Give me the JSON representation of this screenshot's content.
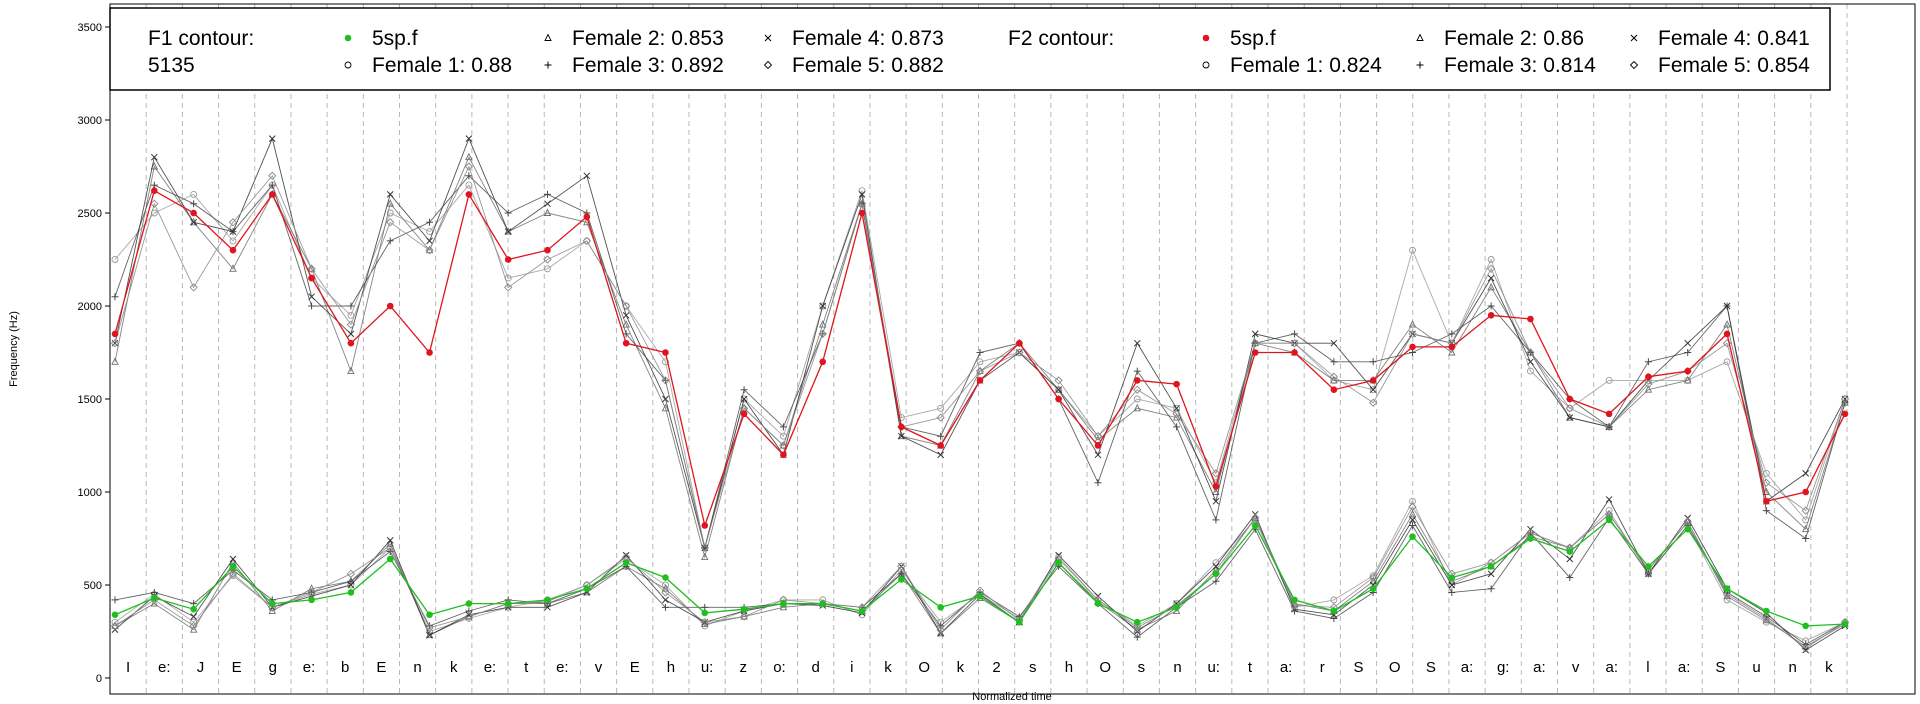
{
  "chart_data": {
    "type": "line",
    "xlabel": "Normalized time",
    "ylabel": "Frequency (Hz)",
    "ylim": [
      0,
      3600
    ],
    "yticks": [
      0,
      500,
      1000,
      1500,
      2000,
      2500,
      3000,
      3500
    ],
    "grid": "vertical dashed segment boundaries",
    "segments": [
      "I",
      "e:",
      "J",
      "E",
      "g",
      "e:",
      "b",
      "E",
      "n",
      "k",
      "e:",
      "t",
      "e:",
      "v",
      "E",
      "h",
      "u:",
      "z",
      "o:",
      "d",
      "i",
      "k",
      "O",
      "k",
      "2",
      "s",
      "h",
      "O",
      "s",
      "n",
      "u:",
      "t",
      "a:",
      "r",
      "S",
      "O",
      "S",
      "a:",
      "g:",
      "a:",
      "v",
      "a:",
      "l",
      "a:",
      "S",
      "u",
      "n",
      "k"
    ],
    "legend": {
      "placement": "top",
      "f1_title": "F1 contour:",
      "f1_subtitle": "5135",
      "f2_title": "F2 contour:",
      "f1_entries": [
        {
          "marker": "filled-circle",
          "label": "5sp.f",
          "color": "#1fbf1f"
        },
        {
          "marker": "circle",
          "label": "Female 1: 0.88"
        },
        {
          "marker": "triangle",
          "label": "Female 2: 0.853"
        },
        {
          "marker": "plus",
          "label": "Female 3: 0.892"
        },
        {
          "marker": "cross",
          "label": "Female 4: 0.873"
        },
        {
          "marker": "diamond",
          "label": "Female 5: 0.882"
        }
      ],
      "f2_entries": [
        {
          "marker": "filled-circle",
          "label": "5sp.f",
          "color": "#e0141e"
        },
        {
          "marker": "circle",
          "label": "Female 1: 0.824"
        },
        {
          "marker": "triangle",
          "label": "Female 2: 0.86"
        },
        {
          "marker": "plus",
          "label": "Female 3: 0.814"
        },
        {
          "marker": "cross",
          "label": "Female 4: 0.841"
        },
        {
          "marker": "diamond",
          "label": "Female 5: 0.854"
        }
      ]
    },
    "series": [
      {
        "name": "5sp.f",
        "formant": "F2",
        "color": "#e0141e",
        "values": [
          1850,
          2620,
          2500,
          2300,
          2600,
          2150,
          1800,
          2000,
          1750,
          2600,
          2250,
          2300,
          2480,
          1800,
          1750,
          820,
          1420,
          1200,
          1700,
          2500,
          1350,
          1250,
          1600,
          1800,
          1500,
          1250,
          1600,
          1580,
          1030,
          1750,
          1750,
          1550,
          1600,
          1780,
          1780,
          1950,
          1930,
          1500,
          1420,
          1620,
          1650,
          1850,
          950,
          1000,
          1420
        ]
      },
      {
        "name": "5sp.f",
        "formant": "F1",
        "color": "#1fbf1f",
        "values": [
          340,
          430,
          370,
          600,
          400,
          420,
          460,
          640,
          340,
          400,
          400,
          420,
          480,
          620,
          540,
          350,
          370,
          400,
          400,
          360,
          530,
          380,
          440,
          300,
          620,
          400,
          300,
          380,
          560,
          820,
          420,
          360,
          480,
          760,
          540,
          600,
          750,
          680,
          850,
          600,
          800,
          480,
          360,
          280,
          290
        ]
      },
      {
        "name": "Female 1",
        "formant": "F2",
        "color": "#9a9a9a",
        "values": [
          2250,
          2500,
          2600,
          2350,
          2650,
          2150,
          1950,
          2500,
          2400,
          2650,
          2150,
          2200,
          2350,
          2000,
          1700,
          700,
          1500,
          1300,
          2000,
          2620,
          1400,
          1450,
          1700,
          1750,
          1550,
          1300,
          1500,
          1450,
          1050,
          1800,
          1800,
          1600,
          1550,
          2300,
          1800,
          2250,
          1650,
          1450,
          1600,
          1600,
          1600,
          1700,
          1100,
          850,
          1500
        ]
      },
      {
        "name": "Female 1",
        "formant": "F1",
        "color": "#9a9a9a",
        "values": [
          300,
          450,
          300,
          550,
          380,
          450,
          500,
          700,
          250,
          320,
          380,
          420,
          500,
          640,
          500,
          280,
          360,
          420,
          420,
          340,
          580,
          300,
          450,
          320,
          650,
          420,
          280,
          400,
          620,
          850,
          380,
          420,
          550,
          950,
          500,
          620,
          780,
          700,
          900,
          560,
          820,
          420,
          300,
          200,
          300
        ]
      },
      {
        "name": "Female 2",
        "formant": "F2",
        "color": "#6f6f6f",
        "values": [
          1700,
          2750,
          2450,
          2200,
          2600,
          2200,
          1650,
          2550,
          2300,
          2800,
          2400,
          2500,
          2450,
          1900,
          1450,
          650,
          1450,
          1250,
          1900,
          2550,
          1300,
          1250,
          1650,
          1800,
          1550,
          1280,
          1450,
          1400,
          1000,
          1800,
          1750,
          1600,
          1600,
          1900,
          1750,
          2100,
          1750,
          1400,
          1350,
          1550,
          1600,
          1900,
          1000,
          800,
          1480
        ]
      },
      {
        "name": "Female 2",
        "formant": "F1",
        "color": "#6f6f6f",
        "values": [
          280,
          400,
          260,
          620,
          360,
          480,
          520,
          720,
          230,
          330,
          400,
          400,
          460,
          600,
          480,
          290,
          330,
          380,
          400,
          360,
          560,
          240,
          430,
          300,
          620,
          410,
          260,
          360,
          580,
          860,
          400,
          360,
          520,
          880,
          520,
          600,
          760,
          700,
          880,
          580,
          840,
          440,
          310,
          170,
          290
        ]
      },
      {
        "name": "Female 3",
        "formant": "F2",
        "color": "#4a4a4a",
        "values": [
          2050,
          2650,
          2550,
          2400,
          2650,
          2000,
          2000,
          2350,
          2450,
          2700,
          2500,
          2600,
          2500,
          1850,
          1600,
          700,
          1550,
          1350,
          1850,
          2550,
          1350,
          1300,
          1750,
          1800,
          1500,
          1050,
          1650,
          1350,
          850,
          1800,
          1850,
          1700,
          1700,
          1750,
          1850,
          2000,
          1750,
          1500,
          1350,
          1700,
          1750,
          2000,
          900,
          750,
          1480
        ]
      },
      {
        "name": "Female 3",
        "formant": "F1",
        "color": "#4a4a4a",
        "values": [
          420,
          460,
          400,
          580,
          420,
          460,
          520,
          680,
          280,
          360,
          420,
          400,
          480,
          600,
          380,
          380,
          380,
          400,
          400,
          380,
          560,
          280,
          460,
          330,
          600,
          400,
          220,
          380,
          520,
          800,
          360,
          320,
          460,
          820,
          460,
          480,
          780,
          540,
          860,
          560,
          820,
          460,
          330,
          180,
          300
        ]
      },
      {
        "name": "Female 4",
        "formant": "F2",
        "color": "#333333",
        "values": [
          1800,
          2800,
          2450,
          2400,
          2900,
          2050,
          1850,
          2600,
          2350,
          2900,
          2400,
          2550,
          2700,
          1950,
          1500,
          700,
          1500,
          1200,
          2000,
          2600,
          1300,
          1200,
          1600,
          1750,
          1550,
          1200,
          1800,
          1450,
          950,
          1850,
          1800,
          1800,
          1550,
          1850,
          1800,
          2150,
          1700,
          1400,
          1350,
          1600,
          1800,
          2000,
          950,
          1100,
          1500
        ]
      },
      {
        "name": "Female 4",
        "formant": "F1",
        "color": "#333333",
        "values": [
          260,
          440,
          330,
          640,
          380,
          440,
          500,
          740,
          230,
          340,
          380,
          380,
          460,
          660,
          420,
          300,
          360,
          400,
          390,
          350,
          600,
          240,
          450,
          300,
          660,
          440,
          250,
          400,
          600,
          880,
          370,
          340,
          500,
          850,
          500,
          560,
          800,
          640,
          960,
          560,
          860,
          480,
          350,
          150,
          280
        ]
      },
      {
        "name": "Female 5",
        "formant": "F2",
        "color": "#888888",
        "values": [
          1800,
          2550,
          2100,
          2450,
          2700,
          2200,
          1900,
          2450,
          2300,
          2750,
          2100,
          2250,
          2350,
          2000,
          1600,
          700,
          1450,
          1250,
          1850,
          2550,
          1350,
          1400,
          1650,
          1750,
          1600,
          1300,
          1550,
          1420,
          1100,
          1800,
          1800,
          1620,
          1480,
          1850,
          1800,
          2200,
          1750,
          1450,
          1350,
          1580,
          1650,
          1800,
          1050,
          900,
          1500
        ]
      },
      {
        "name": "Female 5",
        "formant": "F1",
        "color": "#888888",
        "values": [
          280,
          420,
          280,
          560,
          380,
          460,
          560,
          700,
          270,
          330,
          400,
          410,
          500,
          650,
          460,
          300,
          330,
          420,
          400,
          380,
          600,
          260,
          470,
          310,
          640,
          420,
          270,
          390,
          560,
          860,
          390,
          380,
          540,
          920,
          560,
          620,
          780,
          700,
          880,
          580,
          840,
          450,
          320,
          160,
          300
        ]
      }
    ]
  }
}
